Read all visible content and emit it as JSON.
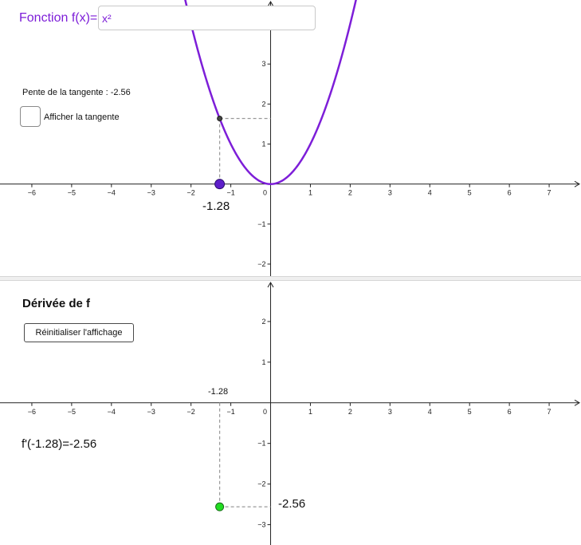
{
  "function_panel": {
    "label": "Fonction f(x)=",
    "expression": "x²",
    "slope_text": "Pente de la tangente : -2.56",
    "tangent_checkbox_label": "Afficher la tangente",
    "tangent_checked": false,
    "point_x_label": "-1.28",
    "curve_color": "#7d1ed8",
    "point_color": "#5e1ec9"
  },
  "derivative_panel": {
    "title": "Dérivée de f",
    "reset_button_label": "Réinitialiser l'affichage",
    "x_marker_label": "-1.28",
    "value_text": "f'(-1.28)=-2.56",
    "y_marker_label": "-2.56",
    "point_color": "#22dd22"
  },
  "chart_data": [
    {
      "type": "line",
      "series": [
        {
          "function": "x^2"
        }
      ],
      "point": {
        "x": -1.28,
        "y": 1.6384
      },
      "x_ticks": [
        "−6",
        "−5",
        "−4",
        "−3",
        "−2",
        "−1",
        "0",
        "1",
        "2",
        "3",
        "4",
        "5",
        "6",
        "7"
      ],
      "y_ticks": [
        "3",
        "2",
        "1",
        "−1",
        "−2"
      ],
      "xlim": [
        -6.8,
        7.8
      ],
      "ylim": [
        -2.3,
        4.6
      ],
      "grid": false
    },
    {
      "type": "scatter",
      "point": {
        "x": -1.28,
        "y": -2.56
      },
      "x_ticks": [
        "−6",
        "−5",
        "−4",
        "−3",
        "−2",
        "−1",
        "0",
        "1",
        "2",
        "3",
        "4",
        "5",
        "6",
        "7"
      ],
      "y_ticks": [
        "2",
        "1",
        "−1",
        "−2",
        "−3"
      ],
      "xlim": [
        -6.8,
        7.8
      ],
      "ylim": [
        -3.5,
        3.0
      ],
      "grid": false
    }
  ]
}
